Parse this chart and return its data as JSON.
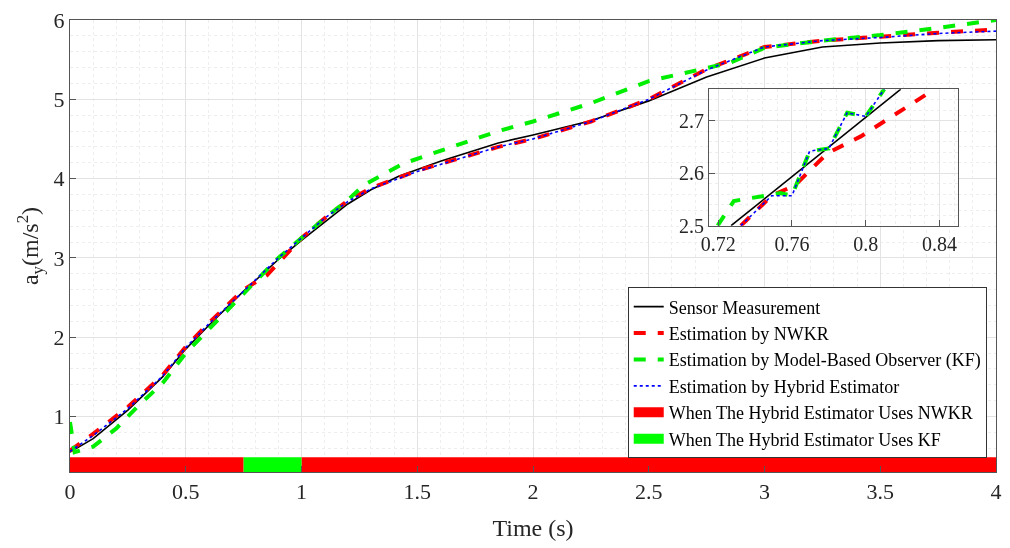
{
  "chart_data": [
    {
      "type": "line",
      "xlabel": "Time (s)",
      "ylabel": "a$_{y}$(m/s$^{2}$)",
      "xlim": [
        0,
        4
      ],
      "ylim": [
        0.3,
        6
      ],
      "xticks": [
        0,
        0.5,
        1,
        1.5,
        2,
        2.5,
        3,
        3.5,
        4
      ],
      "yticks": [
        1,
        2,
        3,
        4,
        5,
        6
      ],
      "grid": true,
      "legend": "bottom right",
      "series": [
        {
          "name": "Sensor Measurement",
          "color": "#000000",
          "line_style": "solid",
          "x": [
            0,
            0.1,
            0.25,
            0.4,
            0.5,
            0.6,
            0.75,
            0.9,
            1.0,
            1.1,
            1.2,
            1.3,
            1.42,
            1.6,
            1.85,
            2.0,
            2.25,
            2.5,
            2.75,
            3.0,
            3.25,
            3.5,
            3.75,
            4.0
          ],
          "values": [
            0.55,
            0.72,
            1.08,
            1.5,
            1.85,
            2.15,
            2.58,
            2.98,
            3.22,
            3.45,
            3.68,
            3.86,
            4.03,
            4.22,
            4.45,
            4.55,
            4.73,
            4.98,
            5.28,
            5.52,
            5.66,
            5.71,
            5.74,
            5.75
          ]
        },
        {
          "name": "Estimation by NWKR",
          "color": "#ff0000",
          "line_style": "dashed",
          "x": [
            0,
            0.1,
            0.25,
            0.4,
            0.5,
            0.6,
            0.75,
            0.85,
            1.0,
            1.1,
            1.2,
            1.3,
            1.5,
            1.85,
            2.0,
            2.25,
            2.5,
            2.75,
            3.0,
            3.25,
            3.5,
            3.75,
            4.0
          ],
          "values": [
            0.57,
            0.78,
            1.12,
            1.52,
            1.88,
            2.18,
            2.6,
            2.78,
            3.25,
            3.5,
            3.72,
            3.88,
            4.1,
            4.4,
            4.5,
            4.72,
            5.0,
            5.38,
            5.66,
            5.74,
            5.79,
            5.84,
            5.88
          ]
        },
        {
          "name": "Estimation by Model-Based Observer (KF)",
          "color": "#00ee00",
          "line_style": "dashed",
          "x": [
            0,
            0.02,
            0.1,
            0.2,
            0.3,
            0.4,
            0.5,
            0.6,
            0.75,
            0.9,
            1.0,
            1.1,
            1.2,
            1.27,
            1.44,
            1.85,
            2.0,
            2.25,
            2.5,
            2.85,
            3.0,
            3.25,
            3.5,
            3.75,
            4.0
          ],
          "values": [
            0.93,
            0.55,
            0.62,
            0.85,
            1.15,
            1.42,
            1.8,
            2.1,
            2.55,
            3.0,
            3.25,
            3.5,
            3.73,
            3.92,
            4.19,
            4.6,
            4.72,
            4.95,
            5.23,
            5.46,
            5.65,
            5.74,
            5.81,
            5.9,
            6.0
          ]
        },
        {
          "name": "Estimation by Hybrid Estimator",
          "color": "#0000ff",
          "line_style": "dotted",
          "x": [
            0,
            0.1,
            0.25,
            0.4,
            0.5,
            0.6,
            0.75,
            0.9,
            1.0,
            1.1,
            1.2,
            1.3,
            1.5,
            1.85,
            2.0,
            2.25,
            2.5,
            2.75,
            3.0,
            3.25,
            3.5,
            3.75,
            4.0
          ],
          "values": [
            0.56,
            0.76,
            1.1,
            1.51,
            1.87,
            2.17,
            2.58,
            3.0,
            3.25,
            3.5,
            3.71,
            3.87,
            4.09,
            4.4,
            4.5,
            4.72,
            5.0,
            5.37,
            5.66,
            5.74,
            5.78,
            5.83,
            5.86
          ]
        },
        {
          "name": "When The Hybrid Estimator Uses NWKR",
          "color": "#ff0000",
          "line_style": "solid",
          "x": [
            0,
            0.75,
            0.875,
            1.0,
            4.0
          ],
          "values": [
            0.39,
            0.39,
            null,
            0.39,
            0.39
          ]
        },
        {
          "name": "When The Hybrid Estimator Uses KF",
          "color": "#00ff00",
          "line_style": "solid",
          "x": [
            0.75,
            1.0
          ],
          "values": [
            0.39,
            0.39
          ]
        }
      ]
    },
    {
      "type": "line",
      "xlim": [
        0.715,
        0.85
      ],
      "ylim": [
        2.5,
        2.76
      ],
      "xticks": [
        0.72,
        0.76,
        0.8,
        0.84
      ],
      "yticks": [
        2.5,
        2.6,
        2.7
      ],
      "grid": true,
      "series": [
        {
          "color": "#000000",
          "line_style": "solid",
          "x": [
            0.727,
            0.819
          ],
          "values": [
            2.5,
            2.76
          ]
        },
        {
          "color": "#ff0000",
          "line_style": "dashed",
          "x": [
            0.7323,
            0.749,
            0.7616,
            0.7792,
            0.7973,
            0.8373
          ],
          "values": [
            2.5,
            2.557,
            2.577,
            2.638,
            2.67,
            2.76
          ]
        },
        {
          "color": "#00ee00",
          "line_style": "dashed",
          "x": [
            0.7197,
            0.7285,
            0.7536,
            0.76,
            0.7696,
            0.78,
            0.7899,
            0.8,
            0.81
          ],
          "values": [
            2.5,
            2.547,
            2.562,
            2.557,
            2.642,
            2.647,
            2.715,
            2.708,
            2.76
          ]
        },
        {
          "color": "#0000ff",
          "line_style": "dotted",
          "x": [
            0.7323,
            0.749,
            0.76,
            0.7696,
            0.78,
            0.7899,
            0.8,
            0.81
          ],
          "values": [
            2.5,
            2.557,
            2.557,
            2.642,
            2.647,
            2.715,
            2.708,
            2.76
          ]
        }
      ]
    }
  ]
}
